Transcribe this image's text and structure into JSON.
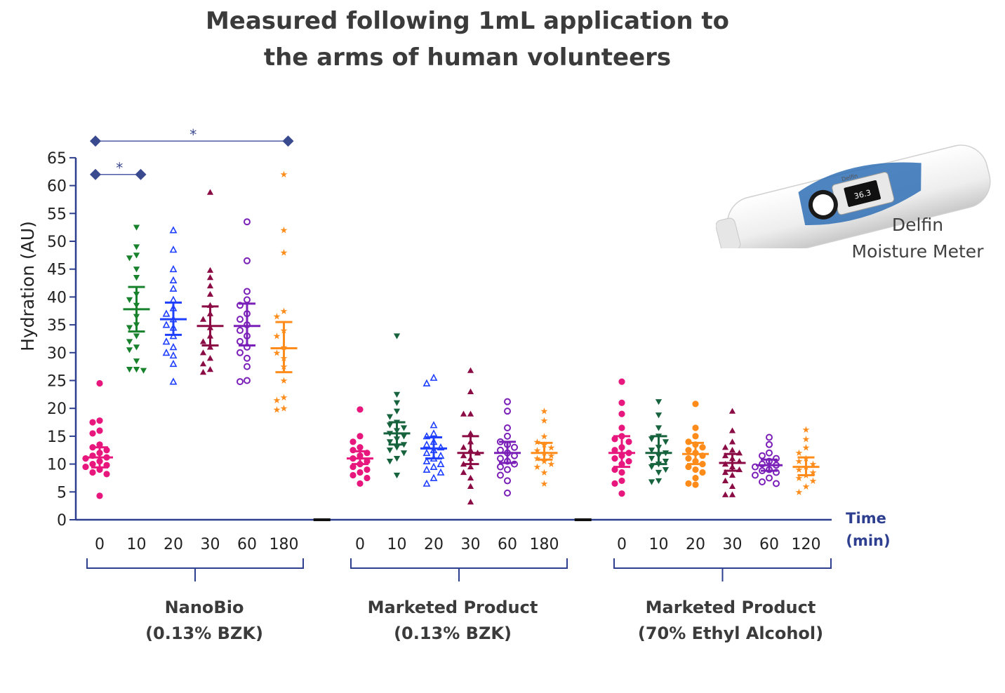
{
  "title_line1": "Measured following 1mL application to",
  "title_line2": "the arms of human volunteers",
  "device": {
    "label_line1": "Delfin",
    "label_line2": "Moisture Meter",
    "screen_reading": "36.3",
    "screen_brand": "Delfin"
  },
  "chart_data": {
    "type": "scatter",
    "ylabel": "Hydration (AU)",
    "ylim": [
      0,
      65
    ],
    "yticks": [
      0,
      5,
      10,
      15,
      20,
      25,
      30,
      35,
      40,
      45,
      50,
      55,
      60,
      65
    ],
    "xlabel_line1": "Time",
    "xlabel_line2": "(min)",
    "significance_marker": "*",
    "significance": [
      {
        "group": 0,
        "from": 0,
        "to": 1,
        "y": 62,
        "label": "*"
      },
      {
        "group": 0,
        "from": 0,
        "to": 5,
        "y": 68,
        "label": "*"
      }
    ],
    "groups": [
      {
        "name_line1": "NanoBio",
        "name_line2": "(0.13% BZK)",
        "series": [
          {
            "time": "0",
            "color": "#e8177e",
            "marker": "circle",
            "mean": 11.2,
            "ci": [
              9.4,
              13.0
            ],
            "points": [
              24.5,
              17.8,
              17.5,
              16.0,
              15.5,
              13.5,
              13.0,
              12.5,
              12.0,
              11.5,
              11.2,
              11.0,
              10.5,
              10.0,
              9.8,
              9.5,
              9.0,
              8.5,
              8.2,
              4.3
            ]
          },
          {
            "time": "10",
            "color": "#17812b",
            "marker": "tri-down",
            "mean": 37.8,
            "ci": [
              33.8,
              41.8
            ],
            "points": [
              52.5,
              49.0,
              47.5,
              47.0,
              45.0,
              43.5,
              40.5,
              39.5,
              38.5,
              36.5,
              35.0,
              34.5,
              33.0,
              32.0,
              31.0,
              30.5,
              28.5,
              27.0,
              27.0,
              26.8
            ]
          },
          {
            "time": "20",
            "color": "#1f3fff",
            "marker": "tri-up-open",
            "mean": 36.0,
            "ci": [
              33.2,
              39.0
            ],
            "points": [
              52.0,
              48.5,
              45.0,
              43.0,
              41.5,
              39.5,
              38.0,
              37.0,
              36.0,
              35.0,
              34.5,
              33.0,
              32.0,
              31.0,
              30.0,
              29.5,
              28.0,
              24.8
            ]
          },
          {
            "time": "30",
            "color": "#8b0b45",
            "marker": "tri-up",
            "mean": 34.8,
            "ci": [
              31.3,
              38.3
            ],
            "points": [
              58.8,
              44.8,
              43.5,
              42.0,
              40.5,
              38.5,
              37.0,
              36.0,
              34.5,
              33.0,
              32.0,
              31.0,
              30.0,
              29.0,
              28.0,
              27.0,
              26.5
            ]
          },
          {
            "time": "60",
            "color": "#7a1fb8",
            "marker": "circle-open",
            "mean": 34.8,
            "ci": [
              31.3,
              38.8
            ],
            "points": [
              53.5,
              46.5,
              41.0,
              39.5,
              38.5,
              37.0,
              36.0,
              35.0,
              34.0,
              33.0,
              32.0,
              31.0,
              30.0,
              29.0,
              27.5,
              25.0,
              24.8
            ]
          },
          {
            "time": "180",
            "color": "#ff8c1a",
            "marker": "star",
            "mean": 30.8,
            "ci": [
              26.5,
              35.5
            ],
            "points": [
              62.0,
              52.0,
              48.0,
              37.5,
              36.5,
              34.0,
              33.0,
              31.0,
              30.0,
              29.0,
              27.5,
              25.0,
              22.0,
              21.5,
              20.0,
              19.8
            ]
          }
        ]
      },
      {
        "name_line1": "Marketed Product",
        "name_line2": "(0.13% BZK)",
        "series": [
          {
            "time": "0",
            "color": "#e8177e",
            "marker": "circle",
            "mean": 11.0,
            "ci": [
              10.0,
              12.3
            ],
            "points": [
              19.8,
              15.0,
              14.0,
              13.0,
              12.5,
              12.0,
              11.5,
              11.0,
              10.5,
              10.0,
              9.5,
              9.0,
              8.5,
              8.0,
              7.5,
              6.5
            ]
          },
          {
            "time": "10",
            "color": "#17633e",
            "marker": "tri-down",
            "mean": 15.5,
            "ci": [
              13.5,
              17.5
            ],
            "points": [
              33.0,
              22.5,
              21.0,
              19.5,
              18.5,
              17.5,
              17.0,
              16.5,
              16.0,
              15.5,
              15.0,
              14.5,
              14.0,
              13.5,
              13.0,
              12.5,
              12.0,
              11.0,
              10.5,
              8.0
            ]
          },
          {
            "time": "20",
            "color": "#1f3fff",
            "marker": "tri-up-open",
            "mean": 12.8,
            "ci": [
              11.0,
              14.8
            ],
            "points": [
              25.5,
              24.5,
              17.0,
              15.5,
              15.0,
              14.0,
              13.5,
              13.0,
              12.5,
              12.0,
              11.5,
              11.0,
              10.5,
              10.0,
              9.5,
              9.0,
              8.5,
              7.5,
              6.5
            ]
          },
          {
            "time": "30",
            "color": "#8b0b45",
            "marker": "tri-up",
            "mean": 12.0,
            "ci": [
              10.0,
              15.0
            ],
            "points": [
              26.8,
              23.0,
              19.0,
              19.0,
              15.5,
              14.0,
              13.0,
              12.5,
              12.0,
              11.5,
              11.0,
              10.0,
              9.5,
              8.5,
              7.5,
              6.0,
              3.2
            ]
          },
          {
            "time": "60",
            "color": "#7a1fb8",
            "marker": "circle-open",
            "mean": 12.0,
            "ci": [
              10.2,
              14.0
            ],
            "points": [
              21.2,
              19.5,
              16.5,
              15.0,
              14.0,
              13.5,
              13.0,
              12.5,
              12.0,
              11.5,
              11.0,
              10.5,
              10.0,
              9.5,
              9.0,
              8.0,
              7.0,
              4.8
            ]
          },
          {
            "time": "180",
            "color": "#ff8c1a",
            "marker": "star",
            "mean": 12.0,
            "ci": [
              10.8,
              13.8
            ],
            "points": [
              19.5,
              17.8,
              15.0,
              14.0,
              13.5,
              13.0,
              12.5,
              12.0,
              11.5,
              11.0,
              10.5,
              10.0,
              9.5,
              8.5,
              6.5
            ]
          }
        ]
      },
      {
        "name_line1": "Marketed Product",
        "name_line2": "(70% Ethyl Alcohol)",
        "series": [
          {
            "time": "0",
            "color": "#e8177e",
            "marker": "circle",
            "mean": 12.0,
            "ci": [
              9.5,
              15.0
            ],
            "points": [
              24.8,
              21.0,
              19.0,
              16.5,
              15.0,
              14.5,
              14.0,
              13.0,
              12.5,
              12.0,
              11.5,
              11.0,
              10.5,
              10.0,
              9.0,
              8.5,
              7.0,
              6.5,
              4.7
            ]
          },
          {
            "time": "10",
            "color": "#17633e",
            "marker": "tri-down",
            "mean": 12.0,
            "ci": [
              10.0,
              15.0
            ],
            "points": [
              21.2,
              18.8,
              16.5,
              15.0,
              14.5,
              14.0,
              13.0,
              12.5,
              12.0,
              11.5,
              11.0,
              10.5,
              10.0,
              9.5,
              9.0,
              8.5,
              7.0,
              6.8
            ]
          },
          {
            "time": "20",
            "color": "#ff8c1a",
            "marker": "circle",
            "mean": 11.8,
            "ci": [
              10.0,
              13.8
            ],
            "points": [
              20.8,
              16.5,
              15.0,
              14.0,
              13.5,
              13.0,
              12.5,
              12.0,
              11.5,
              11.0,
              10.5,
              10.0,
              9.5,
              9.0,
              8.5,
              7.5,
              6.5,
              6.3
            ]
          },
          {
            "time": "30",
            "color": "#8b0b45",
            "marker": "tri-up",
            "mean": 10.2,
            "ci": [
              8.8,
              11.8
            ],
            "points": [
              19.5,
              16.0,
              14.0,
              13.0,
              12.5,
              12.0,
              11.5,
              11.0,
              10.5,
              10.0,
              9.5,
              9.0,
              8.5,
              8.0,
              7.0,
              6.0,
              4.5,
              4.5
            ]
          },
          {
            "time": "60",
            "color": "#7a1fb8",
            "marker": "circle-open",
            "mean": 9.8,
            "ci": [
              8.8,
              10.8
            ],
            "points": [
              14.8,
              13.5,
              12.0,
              11.5,
              11.0,
              10.5,
              10.0,
              9.8,
              9.5,
              9.0,
              8.8,
              8.5,
              8.0,
              7.5,
              6.8,
              6.5
            ]
          },
          {
            "time": "120",
            "color": "#ff8c1a",
            "marker": "star",
            "mean": 9.5,
            "ci": [
              8.0,
              11.2
            ],
            "points": [
              16.2,
              14.5,
              13.0,
              12.0,
              11.0,
              10.5,
              10.0,
              9.5,
              9.0,
              8.5,
              8.0,
              7.5,
              7.0,
              6.0,
              5.0
            ]
          }
        ]
      }
    ]
  }
}
